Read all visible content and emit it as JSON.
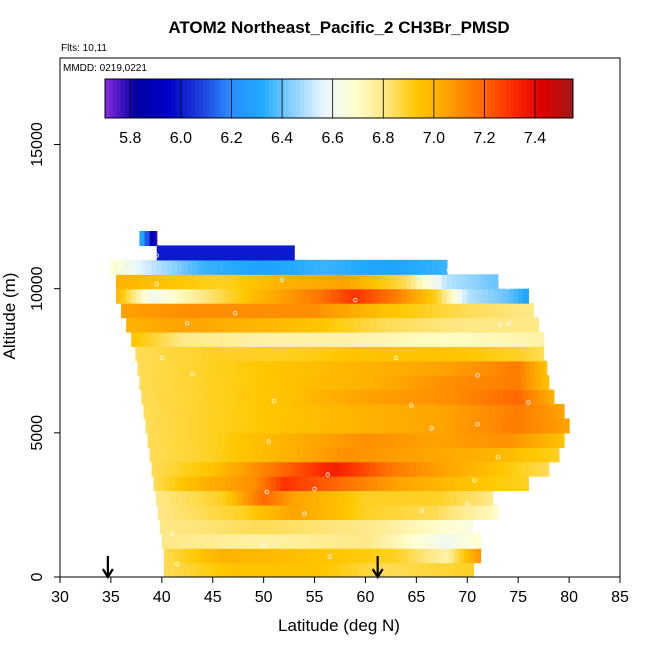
{
  "chart_data": {
    "type": "heatmap",
    "title": "ATOM2 Northeast_Pacific_2 CH3Br_PMSD",
    "flights_label": "Flts: 10,11",
    "mmdd_label": "MMDD: 0219,0221",
    "xlabel": "Latitude (deg N)",
    "ylabel": "Altitude (m)",
    "xlim": [
      30,
      85
    ],
    "ylim": [
      0,
      18000
    ],
    "xticks": [
      "30",
      "35",
      "40",
      "45",
      "50",
      "55",
      "60",
      "65",
      "70",
      "75",
      "80",
      "85"
    ],
    "xtick_values": [
      30,
      35,
      40,
      45,
      50,
      55,
      60,
      65,
      70,
      75,
      80,
      85
    ],
    "yticks": [
      "0",
      "5000",
      "10000",
      "15000"
    ],
    "ytick_values": [
      0,
      5000,
      10000,
      15000
    ],
    "colorbar": {
      "min": 5.7,
      "max": 7.55,
      "ticks": [
        "5.8",
        "6.0",
        "6.2",
        "6.4",
        "6.6",
        "6.8",
        "7.0",
        "7.2",
        "7.4"
      ],
      "tick_values": [
        5.8,
        6.0,
        6.2,
        6.4,
        6.6,
        6.8,
        7.0,
        7.2,
        7.4
      ],
      "colors": [
        "#8a2be2",
        "#0000a0",
        "#0000c8",
        "#1a3cd8",
        "#2a8bff",
        "#1ea8ff",
        "#88d0ff",
        "#e8f6ff",
        "#ffffd0",
        "#ffe680",
        "#ffc800",
        "#ffa000",
        "#ff7000",
        "#ff3000",
        "#e00000",
        "#a01818"
      ]
    },
    "arrows": [
      34.7,
      61.2
    ],
    "bands": [
      {
        "alt": 250,
        "lat0": 40.2,
        "lat1": 70.6,
        "values": [
          [
            40.2,
            6.85
          ],
          [
            47,
            6.95
          ],
          [
            55,
            6.95
          ],
          [
            62,
            6.85
          ],
          [
            70.6,
            6.9
          ]
        ]
      },
      {
        "alt": 750,
        "lat0": 40.2,
        "lat1": 71.3,
        "values": [
          [
            40.2,
            6.85
          ],
          [
            46,
            7.0
          ],
          [
            55,
            6.95
          ],
          [
            63,
            6.9
          ],
          [
            68,
            6.75
          ],
          [
            71.3,
            7.1
          ]
        ]
      },
      {
        "alt": 1250,
        "lat0": 40.0,
        "lat1": 71.3,
        "values": [
          [
            40,
            6.8
          ],
          [
            50,
            6.75
          ],
          [
            60,
            6.8
          ],
          [
            68,
            6.6
          ],
          [
            71.3,
            6.7
          ]
        ]
      },
      {
        "alt": 1750,
        "lat0": 39.8,
        "lat1": 70.5,
        "values": [
          [
            39.8,
            6.8
          ],
          [
            50,
            6.85
          ],
          [
            60,
            6.8
          ],
          [
            70.5,
            6.65
          ]
        ]
      },
      {
        "alt": 2250,
        "lat0": 39.6,
        "lat1": 73.0,
        "values": [
          [
            39.6,
            6.8
          ],
          [
            48,
            6.9
          ],
          [
            53,
            7.05
          ],
          [
            60,
            6.9
          ],
          [
            67,
            6.85
          ],
          [
            73,
            6.7
          ]
        ]
      },
      {
        "alt": 2750,
        "lat0": 39.4,
        "lat1": 72.5,
        "values": [
          [
            39.4,
            6.8
          ],
          [
            46,
            6.9
          ],
          [
            50,
            7.2
          ],
          [
            53,
            7.05
          ],
          [
            60,
            6.9
          ],
          [
            67,
            6.9
          ],
          [
            72.5,
            6.8
          ]
        ]
      },
      {
        "alt": 3250,
        "lat0": 39.2,
        "lat1": 76.0,
        "values": [
          [
            39.2,
            6.85
          ],
          [
            44,
            7.0
          ],
          [
            49,
            7.1
          ],
          [
            52,
            7.3
          ],
          [
            57,
            7.2
          ],
          [
            63,
            7.05
          ],
          [
            70,
            6.95
          ],
          [
            76,
            6.9
          ]
        ]
      },
      {
        "alt": 3750,
        "lat0": 39.0,
        "lat1": 78.0,
        "values": [
          [
            39,
            6.85
          ],
          [
            45,
            6.95
          ],
          [
            52,
            7.2
          ],
          [
            57,
            7.35
          ],
          [
            63,
            7.15
          ],
          [
            70,
            7.0
          ],
          [
            78,
            6.85
          ]
        ]
      },
      {
        "alt": 4250,
        "lat0": 38.8,
        "lat1": 79.0,
        "values": [
          [
            38.8,
            6.85
          ],
          [
            45,
            6.9
          ],
          [
            52,
            7.0
          ],
          [
            58,
            7.1
          ],
          [
            65,
            7.05
          ],
          [
            72,
            7.0
          ],
          [
            79,
            6.9
          ]
        ]
      },
      {
        "alt": 4750,
        "lat0": 38.6,
        "lat1": 79.5,
        "values": [
          [
            38.6,
            6.85
          ],
          [
            45,
            6.9
          ],
          [
            52,
            7.0
          ],
          [
            60,
            7.1
          ],
          [
            67,
            7.05
          ],
          [
            74,
            7.1
          ],
          [
            79.5,
            6.95
          ]
        ]
      },
      {
        "alt": 5250,
        "lat0": 38.4,
        "lat1": 80.0,
        "values": [
          [
            38.4,
            6.85
          ],
          [
            45,
            6.9
          ],
          [
            52,
            6.95
          ],
          [
            60,
            7.0
          ],
          [
            68,
            7.05
          ],
          [
            75,
            7.15
          ],
          [
            80,
            7.05
          ]
        ]
      },
      {
        "alt": 5750,
        "lat0": 38.2,
        "lat1": 79.5,
        "values": [
          [
            38.2,
            6.85
          ],
          [
            45,
            6.9
          ],
          [
            52,
            6.95
          ],
          [
            60,
            7.0
          ],
          [
            68,
            7.05
          ],
          [
            75,
            7.15
          ],
          [
            79.5,
            7.05
          ]
        ]
      },
      {
        "alt": 6250,
        "lat0": 38.0,
        "lat1": 78.5,
        "values": [
          [
            38,
            6.85
          ],
          [
            45,
            6.9
          ],
          [
            52,
            6.95
          ],
          [
            60,
            7.05
          ],
          [
            68,
            7.1
          ],
          [
            75,
            7.2
          ],
          [
            78.5,
            7.0
          ]
        ]
      },
      {
        "alt": 6750,
        "lat0": 37.8,
        "lat1": 78.0,
        "values": [
          [
            37.8,
            6.85
          ],
          [
            45,
            6.9
          ],
          [
            52,
            6.95
          ],
          [
            60,
            7.0
          ],
          [
            68,
            7.1
          ],
          [
            75,
            7.15
          ],
          [
            78,
            6.95
          ]
        ]
      },
      {
        "alt": 7250,
        "lat0": 37.6,
        "lat1": 77.8,
        "values": [
          [
            37.6,
            6.85
          ],
          [
            45,
            6.9
          ],
          [
            52,
            6.95
          ],
          [
            60,
            7.0
          ],
          [
            68,
            7.05
          ],
          [
            75,
            7.15
          ],
          [
            77.8,
            6.95
          ]
        ]
      },
      {
        "alt": 7750,
        "lat0": 37.4,
        "lat1": 77.5,
        "values": [
          [
            37.4,
            6.85
          ],
          [
            45,
            6.9
          ],
          [
            52,
            6.9
          ],
          [
            60,
            6.95
          ],
          [
            68,
            6.95
          ],
          [
            75,
            6.9
          ],
          [
            77.5,
            6.85
          ]
        ]
      },
      {
        "alt": 8250,
        "lat0": 37.0,
        "lat1": 77.5,
        "values": [
          [
            37,
            6.95
          ],
          [
            42,
            6.8
          ],
          [
            50,
            6.75
          ],
          [
            58,
            6.75
          ],
          [
            68,
            6.7
          ],
          [
            77.5,
            6.75
          ]
        ]
      },
      {
        "alt": 8750,
        "lat0": 36.5,
        "lat1": 77.0,
        "values": [
          [
            36.5,
            7.0
          ],
          [
            42,
            7.05
          ],
          [
            48,
            7.0
          ],
          [
            55,
            6.95
          ],
          [
            62,
            6.85
          ],
          [
            70,
            6.8
          ],
          [
            77,
            6.8
          ]
        ]
      },
      {
        "alt": 9250,
        "lat0": 36.0,
        "lat1": 76.5,
        "values": [
          [
            36,
            7.05
          ],
          [
            42,
            7.1
          ],
          [
            48,
            7.1
          ],
          [
            55,
            7.1
          ],
          [
            62,
            6.95
          ],
          [
            70,
            6.85
          ],
          [
            76.5,
            6.8
          ]
        ]
      },
      {
        "alt": 9750,
        "lat0": 35.5,
        "lat1": 76.0,
        "values": [
          [
            35.5,
            7.0
          ],
          [
            39,
            6.6
          ],
          [
            44,
            6.8
          ],
          [
            50,
            7.0
          ],
          [
            55,
            7.15
          ],
          [
            59,
            7.3
          ],
          [
            63,
            7.15
          ],
          [
            67,
            6.9
          ],
          [
            70,
            6.5
          ],
          [
            74,
            6.4
          ],
          [
            76,
            6.3
          ]
        ]
      },
      {
        "alt": 10250,
        "lat0": 35.5,
        "lat1": 73.0,
        "values": [
          [
            35.5,
            7.0
          ],
          [
            40,
            6.95
          ],
          [
            46,
            6.9
          ],
          [
            52,
            7.0
          ],
          [
            58,
            7.05
          ],
          [
            64,
            6.85
          ],
          [
            68,
            6.5
          ],
          [
            73,
            6.4
          ]
        ]
      },
      {
        "alt": 10750,
        "lat0": 35.0,
        "lat1": 68.0,
        "values": [
          [
            35,
            6.7
          ],
          [
            38,
            6.55
          ],
          [
            44,
            6.35
          ],
          [
            50,
            6.3
          ],
          [
            56,
            6.35
          ],
          [
            62,
            6.3
          ],
          [
            68,
            6.35
          ]
        ]
      },
      {
        "alt": 11250,
        "lat0": 39.5,
        "lat1": 53.0,
        "values": [
          [
            39.5,
            6.0
          ],
          [
            45,
            6.0
          ],
          [
            53,
            6.0
          ]
        ]
      },
      {
        "alt": 11750,
        "lat0": 37.8,
        "lat1": 39.5,
        "values": [
          [
            37.8,
            6.4
          ],
          [
            39.5,
            5.75
          ]
        ]
      }
    ],
    "samples": [
      [
        41.5,
        450
      ],
      [
        56.5,
        700
      ],
      [
        50,
        1100
      ],
      [
        70.4,
        1050
      ],
      [
        41,
        1500
      ],
      [
        54,
        2200
      ],
      [
        65.5,
        2300
      ],
      [
        70,
        2550
      ],
      [
        50.3,
        2950
      ],
      [
        55,
        3050
      ],
      [
        70.7,
        3350
      ],
      [
        56.3,
        3550
      ],
      [
        73,
        4150
      ],
      [
        50.5,
        4700
      ],
      [
        66.5,
        5150
      ],
      [
        71,
        5300
      ],
      [
        51,
        6100
      ],
      [
        64.5,
        5950
      ],
      [
        76,
        6050
      ],
      [
        43,
        7050
      ],
      [
        71,
        7000
      ],
      [
        40,
        7600
      ],
      [
        63,
        7600
      ],
      [
        42.5,
        8800
      ],
      [
        47.2,
        9150
      ],
      [
        73.2,
        8750
      ],
      [
        74.1,
        8800
      ],
      [
        59,
        9600
      ],
      [
        39.5,
        10150
      ],
      [
        51.8,
        10300
      ],
      [
        68.2,
        10650
      ],
      [
        74,
        10050
      ],
      [
        36,
        10800
      ],
      [
        39.5,
        11150
      ],
      [
        37.6,
        11800
      ]
    ]
  }
}
